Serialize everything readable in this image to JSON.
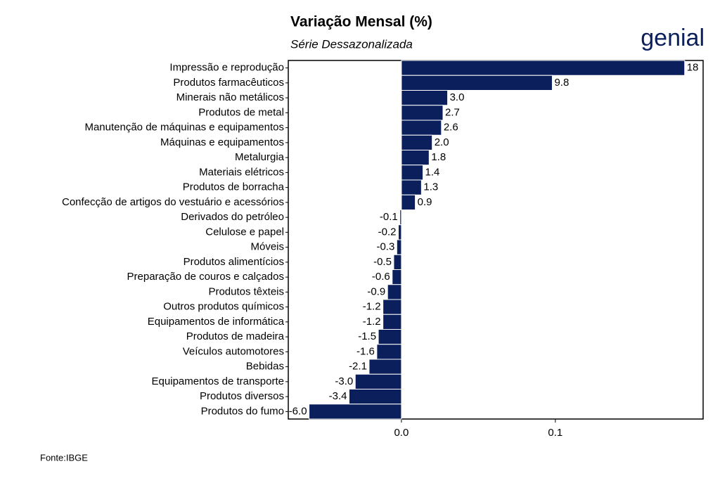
{
  "chart_data": {
    "type": "bar",
    "orientation": "horizontal",
    "title": "Variação Mensal (%)",
    "subtitle": "Série Dessazonalizada",
    "logo": "genial",
    "source": "Fonte:IBGE",
    "categories": [
      "Impressão e reprodução",
      "Produtos farmacêuticos",
      "Minerais não metálicos",
      "Produtos de metal",
      "Manutenção de máquinas e equipamentos",
      "Máquinas e equipamentos",
      "Metalurgia",
      "Materiais elétricos",
      "Produtos de borracha",
      "Confecção de artigos do vestuário e acessórios",
      "Derivados do petróleo",
      "Celulose e papel",
      "Móveis",
      "Produtos alimentícios",
      "Preparação de couros e calçados",
      "Produtos têxteis",
      "Outros produtos químicos",
      "Equipamentos de informática",
      "Produtos de madeira",
      "Veículos automotores",
      "Bebidas",
      "Equipamentos de transporte",
      "Produtos diversos",
      "Produtos do fumo"
    ],
    "values": [
      0.184,
      0.098,
      0.03,
      0.027,
      0.026,
      0.02,
      0.018,
      0.014,
      0.013,
      0.009,
      -0.001,
      -0.002,
      -0.003,
      -0.005,
      -0.006,
      -0.009,
      -0.012,
      -0.012,
      -0.015,
      -0.016,
      -0.021,
      -0.03,
      -0.034,
      -0.06
    ],
    "value_labels": [
      "18",
      "9.8",
      "3.0",
      "2.7",
      "2.6",
      "2.0",
      "1.8",
      "1.4",
      "1.3",
      "0.9",
      "-0.1",
      "-0.2",
      "-0.3",
      "-0.5",
      "-0.6",
      "-0.9",
      "-1.2",
      "-1.2",
      "-1.5",
      "-1.6",
      "-2.1",
      "-3.0",
      "-3.4",
      "-6.0"
    ],
    "color": "#0a1f5c",
    "xlim": [
      -0.0735,
      0.196
    ],
    "xticks": [
      {
        "value": 0,
        "label": "0.0"
      },
      0.1
    ]
  }
}
